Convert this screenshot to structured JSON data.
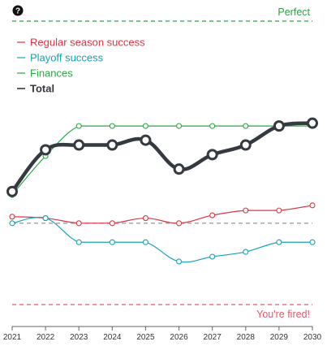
{
  "help": {
    "icon": "question-circle-icon",
    "glyph": "?"
  },
  "reference_lines": {
    "perfect": {
      "label": "Perfect",
      "color": "#2ea043"
    },
    "fired": {
      "label": "You're fired!",
      "color": "#e05a6b"
    },
    "baseline_color": "#9aa0a6"
  },
  "chart_data": {
    "type": "line",
    "x": [
      "2021",
      "2022",
      "2023",
      "2024",
      "2025",
      "2026",
      "2027",
      "2028",
      "2029",
      "2030"
    ],
    "y_range": [
      0,
      1
    ],
    "perfect_value": 1,
    "fired_value": 0,
    "baseline_value": 0.287,
    "series": [
      {
        "name": "Regular season success",
        "color": "#dc3545",
        "values": [
          0.31,
          0.305,
          0.287,
          0.287,
          0.305,
          0.287,
          0.315,
          0.332,
          0.332,
          0.35
        ]
      },
      {
        "name": "Playoff success",
        "color": "#17a2b8",
        "values": [
          0.287,
          0.305,
          0.22,
          0.22,
          0.22,
          0.152,
          0.169,
          0.186,
          0.22,
          0.22
        ]
      },
      {
        "name": "Finances",
        "color": "#28a745",
        "values": [
          0.387,
          0.524,
          0.63,
          0.63,
          0.63,
          0.63,
          0.63,
          0.63,
          0.63,
          0.63
        ]
      },
      {
        "name": "Total",
        "color": "#343a40",
        "values": [
          0.399,
          0.546,
          0.563,
          0.563,
          0.58,
          0.478,
          0.529,
          0.563,
          0.63,
          0.64
        ]
      }
    ],
    "legend_position": "top-left",
    "grid": false
  }
}
